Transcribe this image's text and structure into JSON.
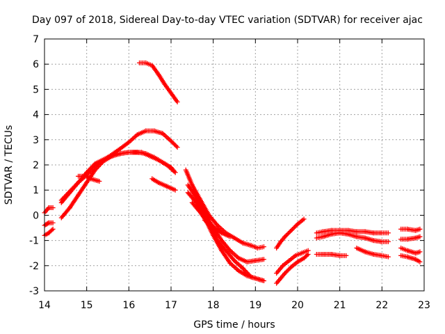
{
  "chart_data": {
    "type": "scatter",
    "title": "Day 097 of 2018, Sidereal Day-to-day VTEC variation (SDTVAR) for receiver ajac",
    "xlabel": "GPS time / hours",
    "ylabel": "SDTVAR / TECUs",
    "xlim": [
      14,
      23
    ],
    "ylim": [
      -3,
      7
    ],
    "xticks": [
      "14",
      "15",
      "16",
      "17",
      "18",
      "19",
      "20",
      "21",
      "22",
      "23"
    ],
    "yticks": [
      "-3",
      "-2",
      "-1",
      "0",
      "1",
      "2",
      "3",
      "4",
      "5",
      "6",
      "7"
    ],
    "grid": true,
    "marker": "+",
    "color": "#ff0000",
    "series": [
      {
        "name": "s1",
        "x": [
          14.0,
          14.05,
          14.1,
          14.2
        ],
        "y": [
          0.1,
          0.2,
          0.3,
          0.3
        ]
      },
      {
        "name": "s2",
        "x": [
          14.0,
          14.05,
          14.1,
          14.2
        ],
        "y": [
          -0.4,
          -0.35,
          -0.3,
          -0.3
        ]
      },
      {
        "name": "s3",
        "x": [
          14.0,
          14.1,
          14.2
        ],
        "y": [
          -0.8,
          -0.7,
          -0.55
        ]
      },
      {
        "name": "s4",
        "x": [
          14.4,
          14.6,
          14.8,
          15.0,
          15.2,
          15.5,
          15.8,
          16.0,
          16.2,
          16.4,
          16.6,
          16.8,
          17.0,
          17.15
        ],
        "y": [
          0.6,
          0.95,
          1.3,
          1.6,
          1.95,
          2.3,
          2.65,
          2.9,
          3.2,
          3.35,
          3.35,
          3.25,
          2.95,
          2.7
        ]
      },
      {
        "name": "s5",
        "x": [
          14.4,
          14.6,
          14.8,
          15.0,
          15.2,
          15.5,
          15.8,
          16.0,
          16.3,
          16.5,
          16.7,
          16.9,
          17.1
        ],
        "y": [
          0.5,
          0.9,
          1.3,
          1.7,
          2.05,
          2.3,
          2.45,
          2.5,
          2.5,
          2.35,
          2.2,
          2.0,
          1.7
        ]
      },
      {
        "name": "s6",
        "x": [
          14.4,
          14.6,
          14.8,
          15.0,
          15.2,
          15.4,
          15.6,
          15.8,
          16.0,
          16.2,
          16.4,
          16.6,
          16.8,
          17.0,
          17.1
        ],
        "y": [
          -0.1,
          0.3,
          0.8,
          1.3,
          1.8,
          2.15,
          2.35,
          2.45,
          2.5,
          2.5,
          2.45,
          2.3,
          2.1,
          1.9,
          1.7
        ]
      },
      {
        "name": "s7",
        "x": [
          14.8,
          15.0,
          15.1,
          15.3
        ],
        "y": [
          1.55,
          1.55,
          1.45,
          1.35
        ]
      },
      {
        "name": "s8",
        "x": [
          16.25,
          16.4,
          16.55,
          16.7,
          16.85,
          17.0,
          17.15
        ],
        "y": [
          6.05,
          6.05,
          5.95,
          5.6,
          5.2,
          4.85,
          4.5
        ]
      },
      {
        "name": "s9",
        "x": [
          16.55,
          16.7,
          16.9,
          17.1
        ],
        "y": [
          1.45,
          1.3,
          1.15,
          1.0
        ]
      },
      {
        "name": "s10",
        "x": [
          17.35,
          17.5,
          17.7,
          17.9,
          18.1,
          18.3,
          18.5,
          18.7,
          18.9,
          19.05,
          19.2
        ],
        "y": [
          1.8,
          1.2,
          0.6,
          0.0,
          -0.4,
          -0.7,
          -0.9,
          -1.1,
          -1.2,
          -1.3,
          -1.25
        ]
      },
      {
        "name": "s11",
        "x": [
          17.4,
          17.6,
          17.8,
          18.0,
          18.2,
          18.4,
          18.6,
          18.8,
          19.0,
          19.2
        ],
        "y": [
          1.2,
          0.7,
          0.1,
          -0.5,
          -1.0,
          -1.4,
          -1.7,
          -1.85,
          -1.8,
          -1.75
        ]
      },
      {
        "name": "s12",
        "x": [
          17.4,
          17.6,
          17.8,
          18.0,
          18.2,
          18.4,
          18.6,
          18.8,
          19.0,
          19.2
        ],
        "y": [
          0.9,
          0.5,
          -0.1,
          -0.8,
          -1.4,
          -1.9,
          -2.2,
          -2.4,
          -2.5,
          -2.6
        ]
      },
      {
        "name": "s13",
        "x": [
          17.5,
          17.7,
          17.9,
          18.1,
          18.3,
          18.5,
          18.7,
          18.9,
          19.1,
          19.2
        ],
        "y": [
          0.5,
          0.1,
          -0.4,
          -1.0,
          -1.4,
          -1.8,
          -2.1,
          -2.45,
          -2.55,
          -2.6
        ]
      },
      {
        "name": "s14",
        "x": [
          17.8,
          18.0,
          18.2,
          18.4
        ],
        "y": [
          -0.2,
          -0.45,
          -0.7,
          -0.85
        ]
      },
      {
        "name": "s15",
        "x": [
          19.5,
          19.6,
          19.7,
          19.85,
          20.0,
          20.15,
          20.25
        ],
        "y": [
          -2.7,
          -2.5,
          -2.3,
          -2.05,
          -1.85,
          -1.7,
          -1.55
        ]
      },
      {
        "name": "s16",
        "x": [
          19.5,
          19.65,
          19.8,
          19.95,
          20.1,
          20.25
        ],
        "y": [
          -2.3,
          -2.0,
          -1.8,
          -1.6,
          -1.5,
          -1.4
        ]
      },
      {
        "name": "s17",
        "x": [
          19.5,
          19.6,
          19.7,
          19.85,
          20.0,
          20.15
        ],
        "y": [
          -1.3,
          -1.05,
          -0.85,
          -0.6,
          -0.35,
          -0.15
        ]
      },
      {
        "name": "s18",
        "x": [
          20.45,
          20.6,
          20.8,
          21.0,
          21.2,
          21.4,
          21.6,
          21.8,
          22.0,
          22.15
        ],
        "y": [
          -0.7,
          -0.65,
          -0.6,
          -0.6,
          -0.6,
          -0.65,
          -0.65,
          -0.7,
          -0.7,
          -0.7
        ]
      },
      {
        "name": "s19",
        "x": [
          20.45,
          20.6,
          20.8,
          21.0,
          21.2,
          21.4,
          21.6,
          21.8,
          22.0,
          22.15
        ],
        "y": [
          -0.9,
          -0.85,
          -0.75,
          -0.7,
          -0.75,
          -0.85,
          -0.9,
          -1.0,
          -1.05,
          -1.05
        ]
      },
      {
        "name": "s20",
        "x": [
          20.45,
          20.6,
          20.8,
          21.0,
          21.15
        ],
        "y": [
          -1.55,
          -1.55,
          -1.55,
          -1.6,
          -1.6
        ]
      },
      {
        "name": "s21",
        "x": [
          21.4,
          21.6,
          21.8,
          22.0,
          22.15
        ],
        "y": [
          -1.3,
          -1.45,
          -1.55,
          -1.6,
          -1.65
        ]
      },
      {
        "name": "s22",
        "x": [
          22.45,
          22.6,
          22.8,
          22.9
        ],
        "y": [
          -0.55,
          -0.55,
          -0.6,
          -0.55
        ]
      },
      {
        "name": "s23",
        "x": [
          22.45,
          22.6,
          22.8,
          22.9
        ],
        "y": [
          -0.95,
          -0.95,
          -0.9,
          -0.85
        ]
      },
      {
        "name": "s24",
        "x": [
          22.45,
          22.6,
          22.8,
          22.9
        ],
        "y": [
          -1.3,
          -1.4,
          -1.5,
          -1.45
        ]
      },
      {
        "name": "s25",
        "x": [
          22.45,
          22.6,
          22.8,
          22.9
        ],
        "y": [
          -1.6,
          -1.65,
          -1.75,
          -1.85
        ]
      }
    ]
  }
}
